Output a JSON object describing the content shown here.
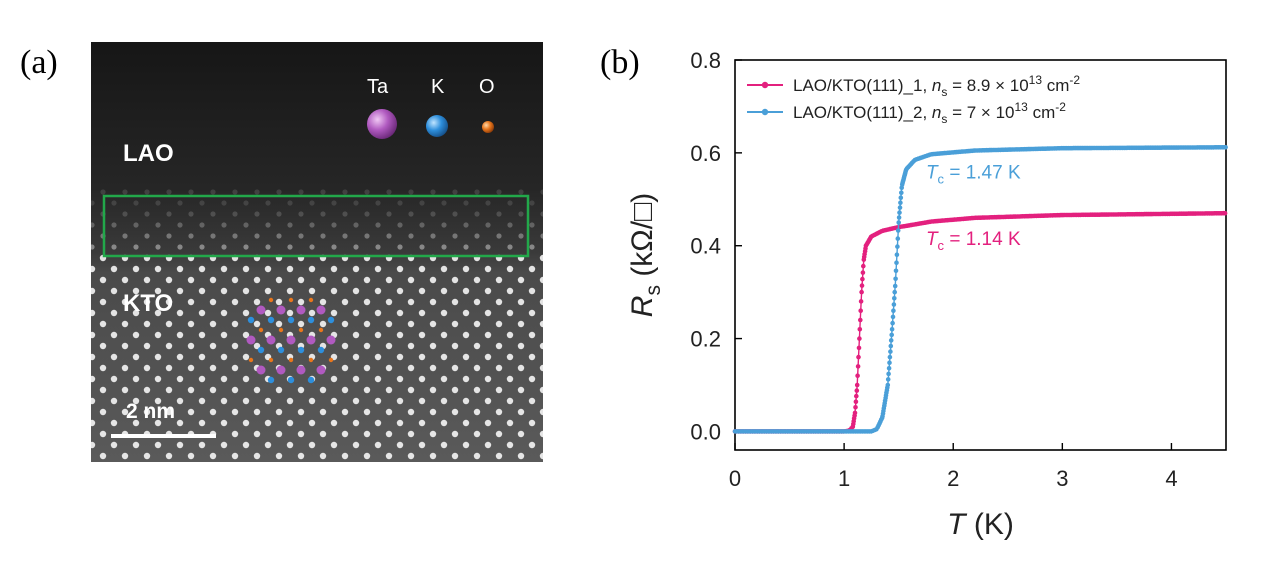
{
  "panel_a": {
    "label": "(a)",
    "layer_top": "LAO",
    "layer_bottom": "KTO",
    "atoms": [
      {
        "name": "Ta",
        "color": "#b05ac0"
      },
      {
        "name": "K",
        "color": "#2e8fdc"
      },
      {
        "name": "O",
        "color": "#e8761c"
      }
    ],
    "scale_bar": "2 nm",
    "highlight_color": "#22a84a"
  },
  "panel_b": {
    "label": "(b)"
  },
  "chart_data": {
    "type": "line",
    "xlabel_var": "T",
    "xlabel_unit": " (K)",
    "ylabel_var": "R",
    "ylabel_sub": "s",
    "ylabel_unit": " (kΩ/□)",
    "xlim": [
      0,
      4.5
    ],
    "ylim": [
      -0.04,
      0.8
    ],
    "xticks": [
      0,
      1,
      2,
      3,
      4
    ],
    "yticks": [
      0.0,
      0.2,
      0.4,
      0.6,
      0.8
    ],
    "ytick_labels": [
      "0.0",
      "0.2",
      "0.4",
      "0.6",
      "0.8"
    ],
    "grid": false,
    "legend_position": "top-left",
    "series": [
      {
        "name": "LAO/KTO(111)_1, n_s = 8.9 × 10^13 cm^-2",
        "legend_prefix": "LAO/KTO(111)_1, ",
        "legend_n": "n",
        "legend_n_sub": "s",
        "legend_mid": " = 8.9 × 10",
        "legend_exp": "13",
        "legend_unit": " cm",
        "legend_unit_exp": "-2",
        "color": "#e3207e",
        "tc_var": "T",
        "tc_sub": "c",
        "tc_value": " = 1.14 K",
        "points": [
          [
            0,
            0.0
          ],
          [
            1.0,
            0.0
          ],
          [
            1.05,
            0.002
          ],
          [
            1.08,
            0.01
          ],
          [
            1.1,
            0.04
          ],
          [
            1.12,
            0.1
          ],
          [
            1.14,
            0.2
          ],
          [
            1.16,
            0.3
          ],
          [
            1.18,
            0.37
          ],
          [
            1.2,
            0.4
          ],
          [
            1.25,
            0.42
          ],
          [
            1.35,
            0.432
          ],
          [
            1.5,
            0.44
          ],
          [
            1.8,
            0.452
          ],
          [
            2.2,
            0.46
          ],
          [
            3.0,
            0.466
          ],
          [
            4.5,
            0.47
          ]
        ]
      },
      {
        "name": "LAO/KTO(111)_2, n_s = 7 × 10^13 cm^-2",
        "legend_prefix": "LAO/KTO(111)_2, ",
        "legend_n": "n",
        "legend_n_sub": "s",
        "legend_mid": " = 7 × 10",
        "legend_exp": "13",
        "legend_unit": " cm",
        "legend_unit_exp": "-2",
        "color": "#4a9fd8",
        "tc_var": "T",
        "tc_sub": "c",
        "tc_value": " = 1.47 K",
        "points": [
          [
            0,
            0.0
          ],
          [
            1.25,
            0.0
          ],
          [
            1.3,
            0.005
          ],
          [
            1.35,
            0.03
          ],
          [
            1.4,
            0.1
          ],
          [
            1.44,
            0.22
          ],
          [
            1.47,
            0.32
          ],
          [
            1.5,
            0.45
          ],
          [
            1.53,
            0.53
          ],
          [
            1.57,
            0.565
          ],
          [
            1.65,
            0.585
          ],
          [
            1.8,
            0.597
          ],
          [
            2.2,
            0.605
          ],
          [
            3.0,
            0.61
          ],
          [
            4.5,
            0.612
          ]
        ]
      }
    ]
  }
}
